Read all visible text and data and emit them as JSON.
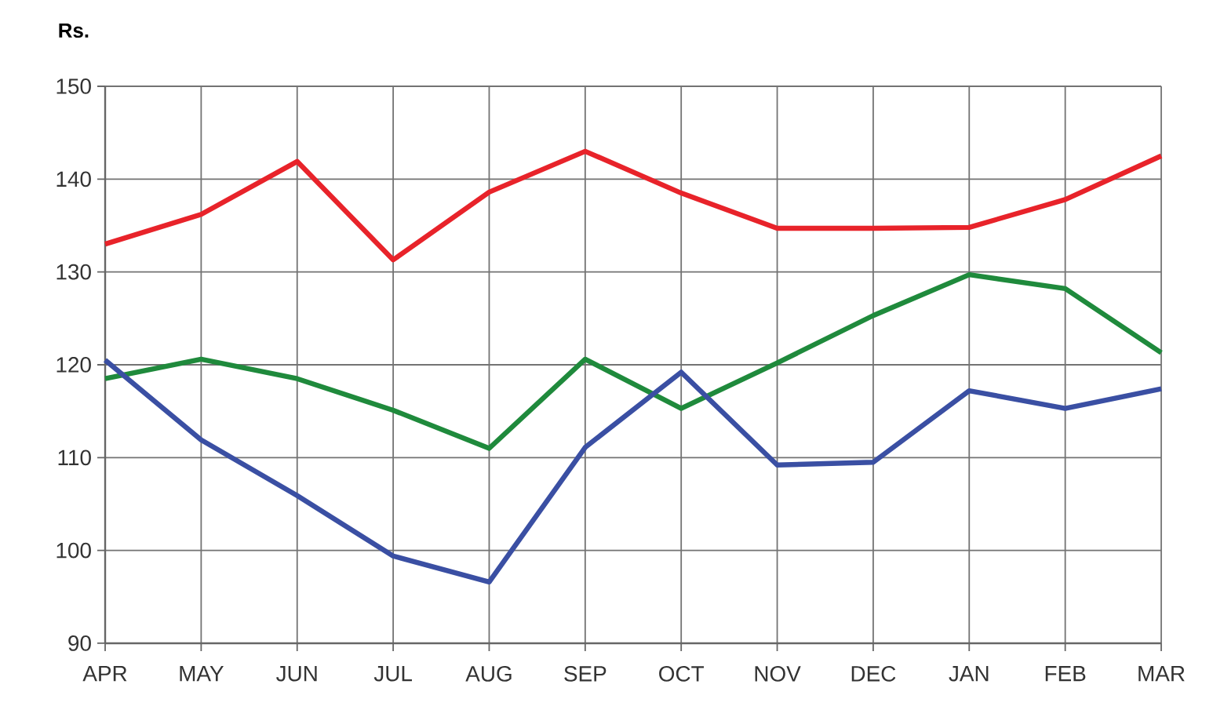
{
  "chart_data": {
    "type": "line",
    "ylabel": "Rs.",
    "categories": [
      "APR",
      "MAY",
      "JUN",
      "JUL",
      "AUG",
      "SEP",
      "OCT",
      "NOV",
      "DEC",
      "JAN",
      "FEB",
      "MAR"
    ],
    "series": [
      {
        "color": "#e8232a",
        "values": [
          133,
          136.2,
          141.9,
          131.3,
          138.6,
          143,
          138.5,
          134.7,
          134.7,
          134.8,
          137.8,
          142.5
        ]
      },
      {
        "color": "#1f8a3c",
        "values": [
          118.5,
          120.6,
          118.5,
          115.1,
          111,
          120.6,
          115.3,
          120.2,
          125.3,
          129.7,
          128.2,
          121.3
        ]
      },
      {
        "color": "#3a4fa3",
        "values": [
          120.5,
          111.9,
          105.9,
          99.4,
          96.6,
          111.1,
          119.2,
          109.2,
          109.5,
          117.2,
          115.3,
          117.4
        ]
      }
    ],
    "ylim": [
      90,
      150
    ],
    "yticks": [
      90,
      100,
      110,
      120,
      130,
      140,
      150
    ],
    "grid": true,
    "marker": "none",
    "line_style": "solid"
  }
}
